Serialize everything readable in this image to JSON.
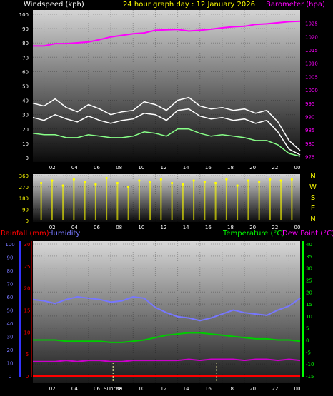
{
  "chart_data": [
    {
      "type": "line",
      "title": "24 hour graph day : 12 January 2026",
      "left_axis_label": "Windspeed (kph)",
      "right_axis_label": "Barometer (hpa)",
      "x_tick_labels": [
        "02",
        "04",
        "06",
        "08",
        "10",
        "12",
        "14",
        "16",
        "18",
        "20",
        "22",
        "00"
      ],
      "left_ticks": [
        "0",
        "10",
        "20",
        "30",
        "40",
        "50",
        "60",
        "70",
        "80",
        "90",
        "100"
      ],
      "right_ticks": [
        "975",
        "980",
        "985",
        "990",
        "995",
        "1000",
        "1005",
        "1010",
        "1015",
        "1020",
        "1025"
      ],
      "ylim_left": [
        0,
        100
      ],
      "ylim_right": [
        973,
        1030
      ],
      "x": [
        0,
        1,
        2,
        3,
        4,
        5,
        6,
        7,
        8,
        9,
        10,
        11,
        12,
        13,
        14,
        15,
        16,
        17,
        18,
        19,
        20,
        21,
        22,
        23,
        24
      ],
      "series": [
        {
          "name": "Barometer",
          "axis": "right",
          "color": "#ff00ff",
          "values": [
            1016.5,
            1016.5,
            1017.4,
            1017.4,
            1017.7,
            1018.0,
            1018.9,
            1019.9,
            1020.5,
            1021.1,
            1021.4,
            1022.4,
            1022.6,
            1022.7,
            1022.1,
            1022.4,
            1022.8,
            1023.3,
            1023.7,
            1023.9,
            1024.6,
            1024.8,
            1025.2,
            1025.6,
            1025.8
          ]
        },
        {
          "name": "Wind gust",
          "axis": "left",
          "color": "#ffffff",
          "values": [
            38,
            36,
            41,
            35,
            32,
            37,
            34,
            30,
            32,
            33,
            39,
            37,
            33,
            40,
            42,
            36,
            34,
            35,
            33,
            34,
            31,
            33,
            25,
            12,
            5
          ]
        },
        {
          "name": "Wind speed",
          "axis": "left",
          "color": "#ffffff",
          "values": [
            28,
            26,
            30,
            27,
            25,
            29,
            26,
            24,
            26,
            27,
            31,
            30,
            26,
            33,
            34,
            29,
            27,
            28,
            26,
            27,
            24,
            26,
            18,
            6,
            2
          ]
        },
        {
          "name": "Wind average",
          "axis": "left",
          "color": "#88ff88",
          "values": [
            17,
            16,
            16,
            14,
            14,
            16,
            15,
            14,
            14,
            15,
            18,
            17,
            15,
            20,
            20,
            17,
            15,
            16,
            15,
            14,
            12,
            12,
            9,
            3,
            1
          ]
        }
      ]
    },
    {
      "type": "scatter",
      "left_ticks": [
        "0",
        "90",
        "180",
        "270",
        "360"
      ],
      "right_ticks": [
        "N",
        "W",
        "S",
        "E",
        "N"
      ],
      "x_tick_labels": [
        "02",
        "04",
        "06",
        "08",
        "10",
        "12",
        "14",
        "16",
        "18",
        "20",
        "22",
        "00"
      ],
      "ylim": [
        0,
        360
      ],
      "color": "#ffff00",
      "values": [
        300,
        320,
        280,
        330,
        310,
        290,
        340,
        300,
        270,
        320,
        310,
        330,
        300,
        290,
        320,
        310,
        300,
        330,
        280,
        320,
        310,
        330,
        320,
        330
      ]
    },
    {
      "type": "line",
      "labels": {
        "rainfall": "Rainfall (mm)",
        "humidity": "Humidity",
        "temperature": "Temperature (°C)",
        "dewpoint": "Dew Point (°C)"
      },
      "humidity_ticks": [
        "0",
        "10",
        "20",
        "30",
        "40",
        "50",
        "60",
        "70",
        "80",
        "90",
        "100"
      ],
      "rain_ticks": [
        "0",
        "5",
        "10",
        "15",
        "20",
        "25",
        "30"
      ],
      "temp_ticks": [
        "-15",
        "-10",
        "-5",
        "0",
        "5",
        "10",
        "15",
        "20",
        "25",
        "30",
        "35",
        "40"
      ],
      "x_tick_labels": [
        "02",
        "04",
        "06",
        "08",
        "10",
        "12",
        "14",
        "16",
        "18",
        "20",
        "22",
        "00"
      ],
      "sunrise_label": "Sunrise",
      "x": [
        0,
        1,
        2,
        3,
        4,
        5,
        6,
        7,
        8,
        9,
        10,
        11,
        12,
        13,
        14,
        15,
        16,
        17,
        18,
        19,
        20,
        21,
        22,
        23,
        24
      ],
      "series": [
        {
          "name": "Humidity",
          "axis": "humidity",
          "color": "#7777ff",
          "values": [
            58,
            57,
            55,
            58,
            60,
            59,
            58,
            56,
            57,
            60,
            59,
            52,
            48,
            45,
            44,
            42,
            44,
            47,
            50,
            48,
            47,
            46,
            50,
            53,
            59
          ]
        },
        {
          "name": "Temperature",
          "axis": "temp",
          "color": "#00cc00",
          "values": [
            0,
            0,
            0,
            -0.5,
            -0.5,
            -0.5,
            -0.5,
            -1,
            -1,
            -0.5,
            0,
            1,
            2,
            2.5,
            3,
            3,
            2.5,
            2,
            1.5,
            1,
            0.5,
            0.5,
            0,
            0,
            -0.5
          ]
        },
        {
          "name": "Dew Point",
          "axis": "temp",
          "color": "#cc00cc",
          "values": [
            -9,
            -9,
            -9,
            -8.5,
            -9,
            -8.5,
            -8.5,
            -9,
            -9,
            -8.5,
            -8.5,
            -8.5,
            -8.5,
            -8.5,
            -8,
            -8.5,
            -8,
            -8,
            -8,
            -8.5,
            -8,
            -8,
            -8.5,
            -8,
            -8.5
          ]
        },
        {
          "name": "Rainfall",
          "axis": "rain",
          "color": "#ff0000",
          "values": [
            0,
            0,
            0,
            0,
            0,
            0,
            0,
            0,
            0,
            0,
            0,
            0,
            0,
            0,
            0,
            0,
            0,
            0,
            0,
            0,
            0,
            0,
            0,
            0,
            0
          ]
        }
      ]
    }
  ]
}
